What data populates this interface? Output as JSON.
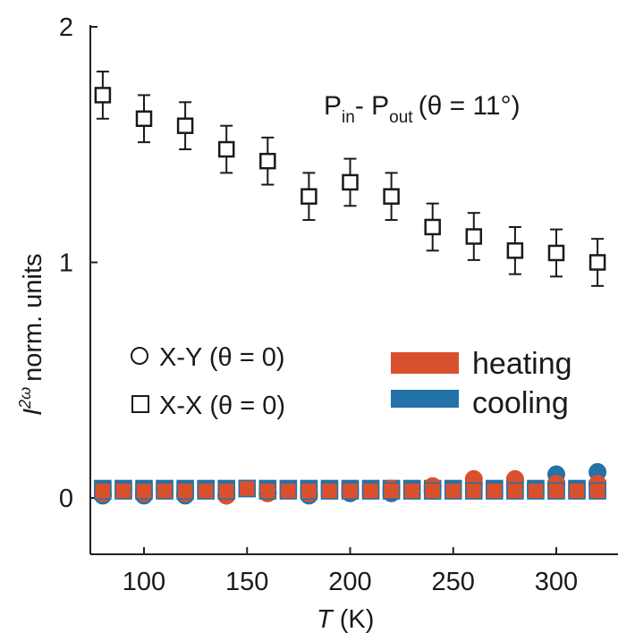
{
  "chart_data": {
    "type": "scatter",
    "xlabel": {
      "symbol": "T",
      "unit": "(K)"
    },
    "ylabel": {
      "symbol": "I",
      "superscript": "2ω",
      "text": "norm. units"
    },
    "xlim": [
      75,
      325
    ],
    "ylim": [
      -0.25,
      2.0
    ],
    "x_ticks": [
      "100",
      "150",
      "200",
      "250",
      "300"
    ],
    "y_ticks": [
      "0",
      "1",
      "2"
    ],
    "annotation": {
      "p1": "P",
      "sub1": "in",
      "dash": "- ",
      "p2": "P",
      "sub2": "out",
      "rest": "(θ = 11°)"
    },
    "legend_markers": [
      {
        "marker": "circle",
        "label": "X-Y (θ = 0)"
      },
      {
        "marker": "square",
        "label": "X-X (θ = 0)"
      }
    ],
    "legend_colors": [
      {
        "label": "heating",
        "color": "#d9512c"
      },
      {
        "label": "cooling",
        "color": "#2372a8"
      }
    ],
    "series": [
      {
        "marker": "square",
        "color": "#1a1a1a",
        "x": [
          80,
          100,
          120,
          140,
          160,
          180,
          200,
          220,
          240,
          260,
          280,
          300,
          320
        ],
        "y": [
          1.71,
          1.61,
          1.58,
          1.48,
          1.43,
          1.28,
          1.34,
          1.28,
          1.15,
          1.11,
          1.05,
          1.04,
          1.0
        ],
        "err": [
          0.1,
          0.1,
          0.1,
          0.1,
          0.1,
          0.1,
          0.1,
          0.1,
          0.1,
          0.1,
          0.1,
          0.1,
          0.1
        ]
      },
      {
        "marker": "circle",
        "color": "#2372a8",
        "x": [
          80,
          100,
          120,
          140,
          160,
          180,
          200,
          220,
          240,
          260,
          280,
          300,
          320
        ],
        "y": [
          0.01,
          0.01,
          0.01,
          0.01,
          0.02,
          0.01,
          0.02,
          0.02,
          0.03,
          0.06,
          0.07,
          0.1,
          0.11
        ]
      },
      {
        "marker": "square",
        "color": "#2372a8",
        "x": [
          80,
          90,
          100,
          110,
          120,
          130,
          140,
          150,
          160,
          170,
          180,
          190,
          200,
          210,
          220,
          230,
          240,
          250,
          260,
          270,
          280,
          290,
          300,
          310,
          320
        ],
        "y": [
          0.04,
          0.04,
          0.04,
          0.04,
          0.04,
          0.04,
          0.04,
          0.04,
          0.04,
          0.04,
          0.04,
          0.04,
          0.04,
          0.04,
          0.04,
          0.04,
          0.04,
          0.04,
          0.04,
          0.04,
          0.04,
          0.04,
          0.04,
          0.04,
          0.04
        ]
      },
      {
        "marker": "circle",
        "color": "#d9512c",
        "x": [
          80,
          100,
          120,
          140,
          160,
          180,
          200,
          220,
          240,
          260,
          280,
          300,
          320
        ],
        "y": [
          0.02,
          0.02,
          0.02,
          0.01,
          0.02,
          0.02,
          0.03,
          0.04,
          0.05,
          0.08,
          0.08,
          0.06,
          0.06
        ]
      },
      {
        "marker": "square",
        "color": "#d9512c",
        "x": [
          80,
          90,
          100,
          110,
          120,
          130,
          140,
          150,
          160,
          170,
          180,
          190,
          200,
          210,
          220,
          230,
          240,
          250,
          260,
          270,
          280,
          290,
          300,
          310,
          320
        ],
        "y": [
          0.03,
          0.03,
          0.03,
          0.03,
          0.03,
          0.03,
          0.03,
          0.04,
          0.03,
          0.03,
          0.03,
          0.03,
          0.03,
          0.03,
          0.03,
          0.03,
          0.03,
          0.03,
          0.03,
          0.03,
          0.03,
          0.03,
          0.03,
          0.03,
          0.03
        ]
      }
    ]
  }
}
